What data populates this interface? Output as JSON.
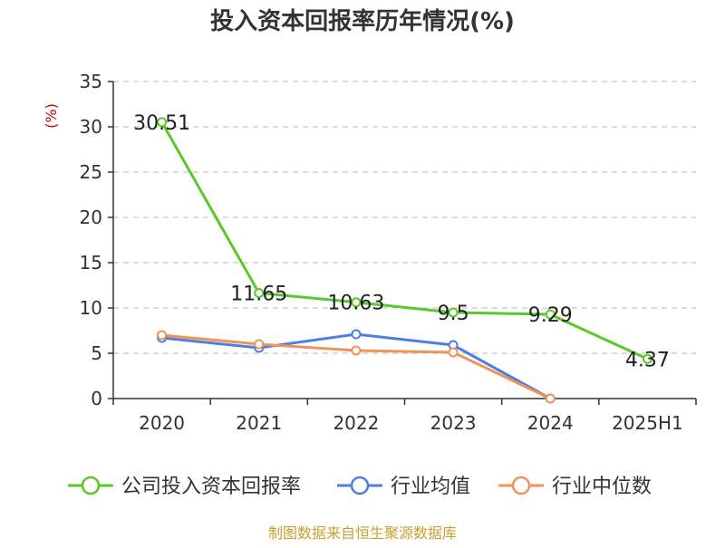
{
  "chart_data": {
    "type": "line",
    "title": "投入资本回报率历年情况(%)",
    "ylabel": "(%)",
    "xlabel": "",
    "categories": [
      "2020",
      "2021",
      "2022",
      "2023",
      "2024",
      "2025H1"
    ],
    "ylim": [
      0,
      35
    ],
    "yticks": [
      0,
      5,
      10,
      15,
      20,
      25,
      30,
      35
    ],
    "grid": true,
    "legend_position": "bottom",
    "series": [
      {
        "name": "公司投入资本回报率",
        "color": "#5cc728",
        "values": [
          30.51,
          11.65,
          10.63,
          9.5,
          9.29,
          4.37
        ],
        "labels": [
          "30.51",
          "11.65",
          "10.63",
          "9.5",
          "9.29",
          "4.37"
        ]
      },
      {
        "name": "行业均值",
        "color": "#4e7fe0",
        "values": [
          6.7,
          5.6,
          7.1,
          5.9,
          0.0,
          null
        ]
      },
      {
        "name": "行业中位数",
        "color": "#f0925a",
        "values": [
          7.0,
          6.0,
          5.3,
          5.1,
          0.0,
          null
        ]
      }
    ],
    "source": "制图数据来自恒生聚源数据库"
  }
}
